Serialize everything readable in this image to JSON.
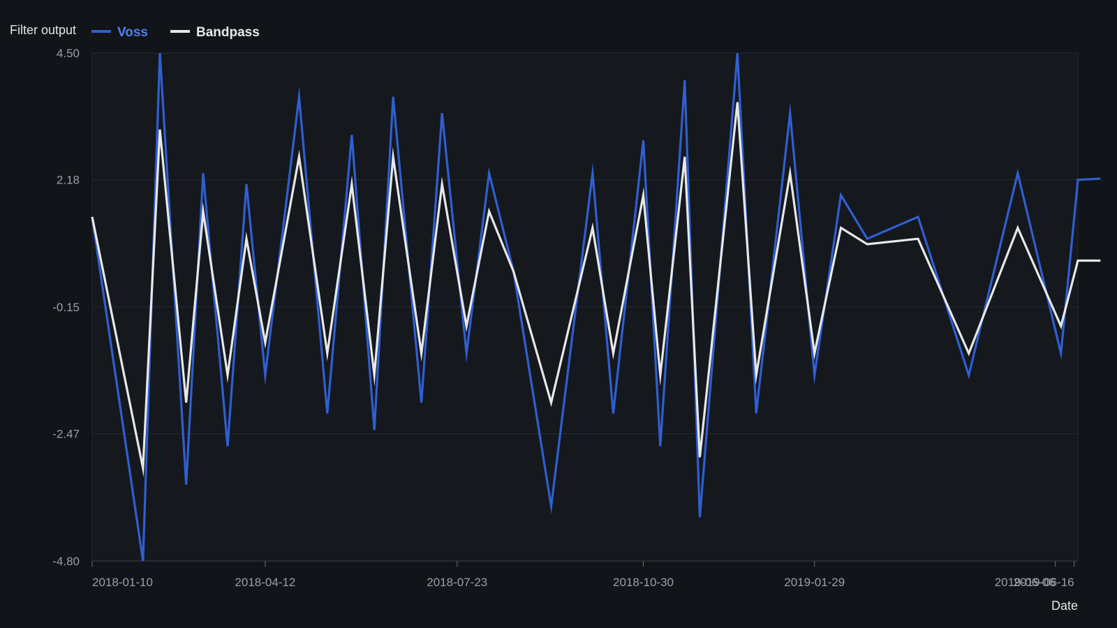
{
  "chart_data": {
    "type": "line",
    "title": "",
    "xlabel": "Date",
    "ylabel": "",
    "legend": {
      "title": "Filter output",
      "placement": "top-left"
    },
    "x": [
      "2018-01-10",
      "2018-02-06",
      "2018-02-15",
      "2018-03-01",
      "2018-03-10",
      "2018-03-23",
      "2018-04-02",
      "2018-04-12",
      "2018-04-30",
      "2018-05-15",
      "2018-05-28",
      "2018-06-09",
      "2018-06-19",
      "2018-07-04",
      "2018-07-15",
      "2018-07-28",
      "2018-08-09",
      "2018-08-22",
      "2018-09-11",
      "2018-10-03",
      "2018-10-14",
      "2018-10-30",
      "2018-11-08",
      "2018-11-21",
      "2018-11-29",
      "2018-12-19",
      "2018-12-29",
      "2019-01-16",
      "2019-01-29",
      "2019-02-12",
      "2019-02-26",
      "2019-03-25",
      "2019-04-21",
      "2019-05-17",
      "2019-06-09",
      "2019-06-18",
      "2019-06-30"
    ],
    "series": [
      {
        "name": "Voss",
        "color": "#2f5fd0",
        "values": [
          1.5,
          -4.8,
          4.5,
          -3.4,
          2.3,
          -2.7,
          2.1,
          -1.4,
          3.7,
          -2.1,
          3.0,
          -2.4,
          3.7,
          -1.9,
          3.4,
          -1.0,
          2.3,
          0.5,
          -3.8,
          2.3,
          -2.1,
          2.9,
          -2.7,
          4.0,
          -4.0,
          4.5,
          -2.1,
          3.4,
          -1.4,
          1.9,
          1.1,
          1.5,
          -1.4,
          2.3,
          -1.0,
          2.18,
          2.2
        ]
      },
      {
        "name": "Bandpass",
        "color": "#e8e8e8",
        "values": [
          1.5,
          -3.1,
          3.1,
          -1.9,
          1.6,
          -1.4,
          1.1,
          -0.8,
          2.6,
          -1.0,
          2.1,
          -1.4,
          2.6,
          -1.0,
          2.1,
          -0.5,
          1.6,
          0.5,
          -1.9,
          1.3,
          -1.0,
          1.9,
          -1.4,
          2.6,
          -2.9,
          3.6,
          -1.4,
          2.3,
          -1.0,
          1.3,
          1.0,
          1.1,
          -1.0,
          1.3,
          -0.5,
          0.7,
          0.7
        ]
      }
    ],
    "x_ticks": [
      "2018-01-10",
      "2018-04-12",
      "2018-07-23",
      "2018-10-30",
      "2019-01-29",
      "2019-06-06",
      "2019-06-16"
    ],
    "y_ticks": [
      "4.50",
      "2.18",
      "-0.15",
      "-2.47",
      "-4.80"
    ],
    "ylim": [
      -4.8,
      4.5
    ],
    "xlim": [
      "2018-01-10",
      "2019-06-18"
    ],
    "grid": true
  }
}
